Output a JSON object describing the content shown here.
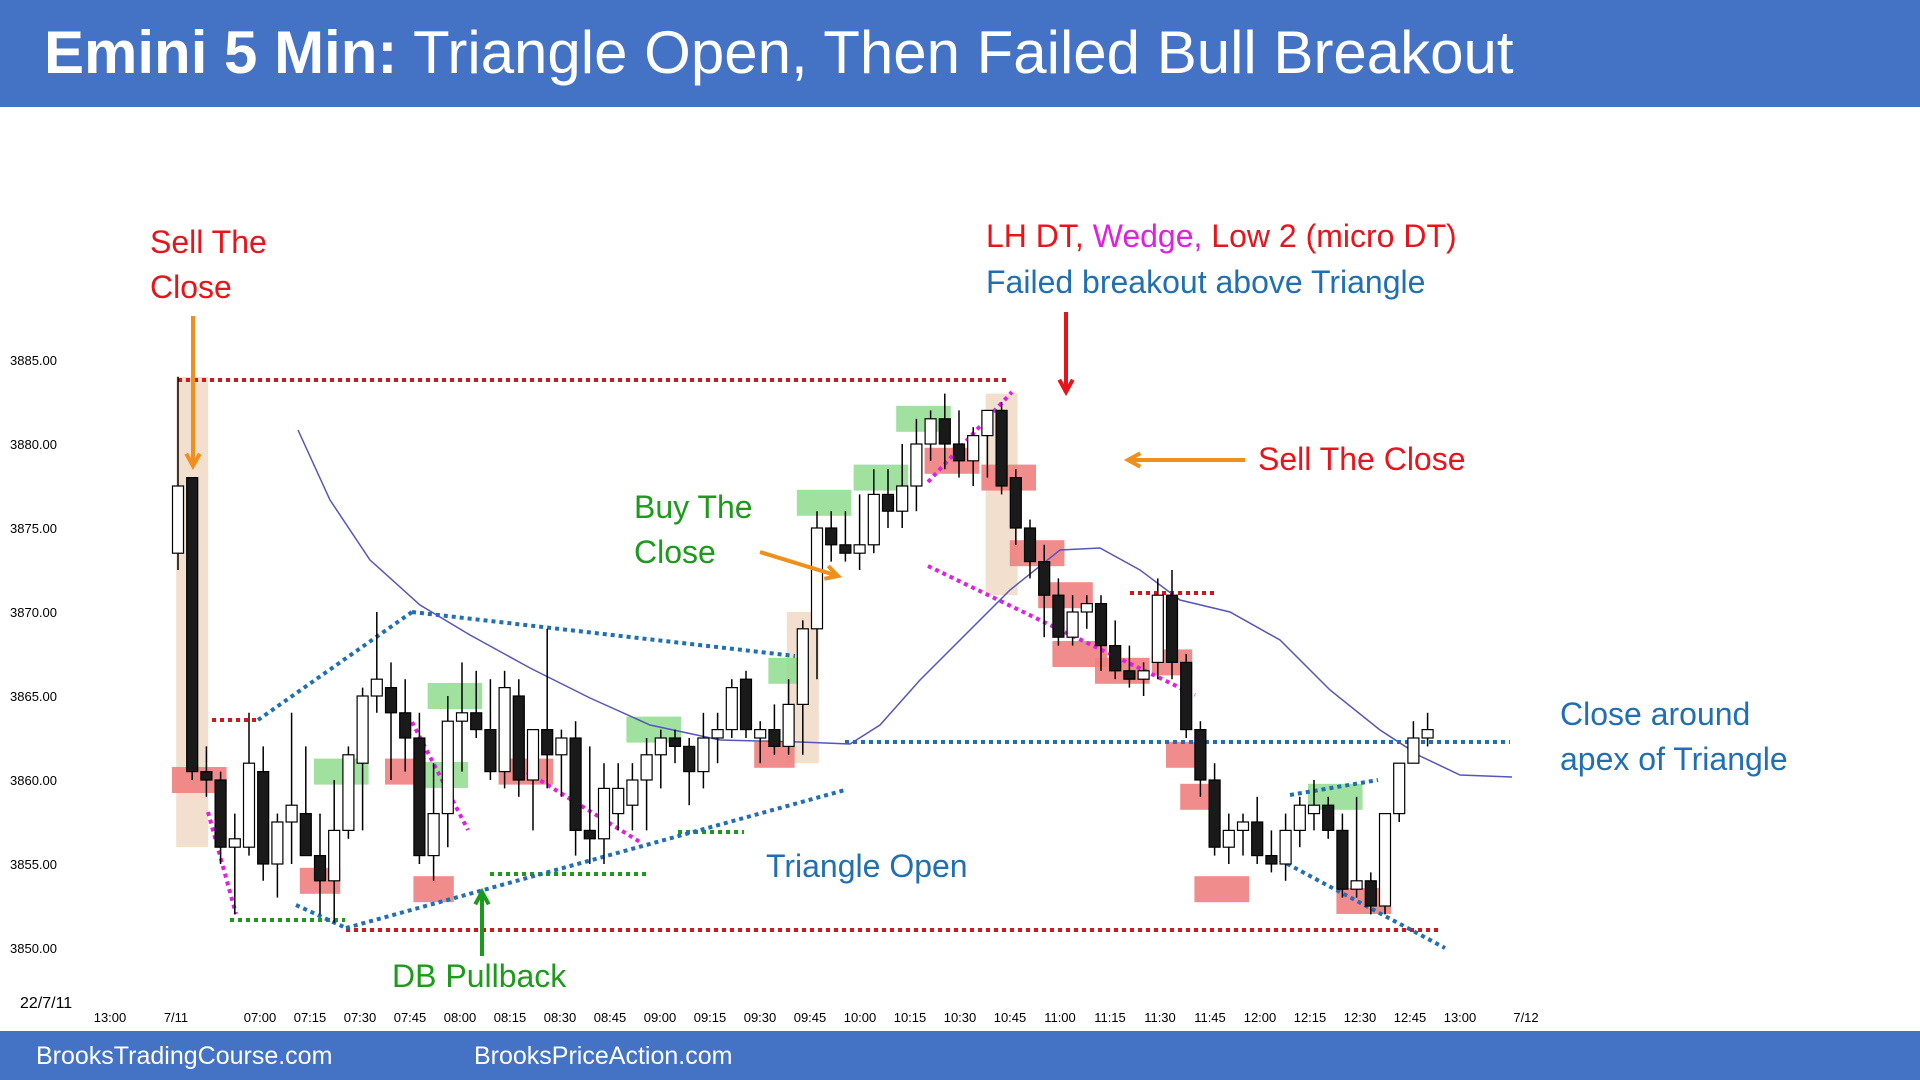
{
  "header": {
    "title_bold": "Emini 5 Min:",
    "title_rest": "Triangle Open, Then Failed Bull Breakout"
  },
  "footer": {
    "left_link": "BrooksTradingCourse.com",
    "right_link": "BrooksPriceAction.com"
  },
  "colors": {
    "header_bg": "#4472c4",
    "bull_highlight": "#8fdc8f",
    "bear_highlight": "#f08080",
    "signal_bar": "#f0d9c4",
    "ema": "#5555bb"
  },
  "annotations": {
    "sell_close_1": "Sell The\nClose",
    "lh_dt": "LH DT,",
    "wedge": "Wedge,",
    "low2": "Low 2 (micro DT)",
    "failed_breakout": "Failed breakout above Triangle",
    "sell_close_2": "Sell The Close",
    "buy_close": "Buy The\nClose",
    "triangle_open": "Triangle Open",
    "db_pullback": "DB Pullback",
    "close_apex": "Close around\napex of Triangle"
  },
  "chart_data": {
    "type": "candlestick",
    "date_label": "22/7/11",
    "y_ticks": [
      "3850.00",
      "3855.00",
      "3860.00",
      "3865.00",
      "3870.00",
      "3875.00",
      "3880.00",
      "3885.00"
    ],
    "x_ticks": [
      "13:00",
      "7/11",
      "07:00",
      "07:15",
      "07:30",
      "07:45",
      "08:00",
      "08:15",
      "08:30",
      "08:45",
      "09:00",
      "09:15",
      "09:30",
      "09:45",
      "10:00",
      "10:15",
      "10:30",
      "10:45",
      "11:00",
      "11:15",
      "11:30",
      "11:45",
      "12:00",
      "12:15",
      "12:30",
      "12:45",
      "13:00",
      "7/12"
    ],
    "ylim": [
      3850,
      3885
    ],
    "candles": [
      {
        "o": 3873.5,
        "h": 3884,
        "l": 3872.5,
        "c": 3877.5
      },
      {
        "o": 3878,
        "h": 3878,
        "l": 3860,
        "c": 3860.5
      },
      {
        "o": 3860.5,
        "h": 3862,
        "l": 3859,
        "c": 3860
      },
      {
        "o": 3860,
        "h": 3860.5,
        "l": 3855,
        "c": 3856
      },
      {
        "o": 3856,
        "h": 3858,
        "l": 3852,
        "c": 3856.5
      },
      {
        "o": 3856,
        "h": 3864,
        "l": 3855.5,
        "c": 3861
      },
      {
        "o": 3860.5,
        "h": 3862,
        "l": 3854,
        "c": 3855
      },
      {
        "o": 3855,
        "h": 3858,
        "l": 3853,
        "c": 3857.5
      },
      {
        "o": 3857.5,
        "h": 3864,
        "l": 3855,
        "c": 3858.5
      },
      {
        "o": 3858,
        "h": 3862,
        "l": 3855.5,
        "c": 3855.5
      },
      {
        "o": 3855.5,
        "h": 3858,
        "l": 3852,
        "c": 3854
      },
      {
        "o": 3854,
        "h": 3860,
        "l": 3851.5,
        "c": 3857
      },
      {
        "o": 3857,
        "h": 3862,
        "l": 3856.5,
        "c": 3861.5
      },
      {
        "o": 3861,
        "h": 3865.5,
        "l": 3857,
        "c": 3865
      },
      {
        "o": 3865,
        "h": 3870,
        "l": 3864,
        "c": 3866
      },
      {
        "o": 3865.5,
        "h": 3867,
        "l": 3860,
        "c": 3864
      },
      {
        "o": 3864,
        "h": 3866,
        "l": 3860.5,
        "c": 3862.5
      },
      {
        "o": 3862.5,
        "h": 3864,
        "l": 3855,
        "c": 3855.5
      },
      {
        "o": 3855.5,
        "h": 3861,
        "l": 3854,
        "c": 3858
      },
      {
        "o": 3858,
        "h": 3865,
        "l": 3856,
        "c": 3863.5
      },
      {
        "o": 3863.5,
        "h": 3867,
        "l": 3860.5,
        "c": 3864
      },
      {
        "o": 3864,
        "h": 3866.5,
        "l": 3862.5,
        "c": 3863
      },
      {
        "o": 3863,
        "h": 3866,
        "l": 3860,
        "c": 3860.5
      },
      {
        "o": 3860.5,
        "h": 3866.5,
        "l": 3859.5,
        "c": 3865.5
      },
      {
        "o": 3865,
        "h": 3866,
        "l": 3859,
        "c": 3860
      },
      {
        "o": 3860,
        "h": 3863,
        "l": 3857,
        "c": 3863
      },
      {
        "o": 3863,
        "h": 3869,
        "l": 3859.5,
        "c": 3861.5
      },
      {
        "o": 3861.5,
        "h": 3863,
        "l": 3859,
        "c": 3862.5
      },
      {
        "o": 3862.5,
        "h": 3863.5,
        "l": 3855.5,
        "c": 3857
      },
      {
        "o": 3857,
        "h": 3862,
        "l": 3855,
        "c": 3856.5
      },
      {
        "o": 3856.5,
        "h": 3861,
        "l": 3855,
        "c": 3859.5
      },
      {
        "o": 3858,
        "h": 3861,
        "l": 3857,
        "c": 3859.5
      },
      {
        "o": 3858.5,
        "h": 3861,
        "l": 3857,
        "c": 3860
      },
      {
        "o": 3860,
        "h": 3862.5,
        "l": 3857,
        "c": 3861.5
      },
      {
        "o": 3861.5,
        "h": 3863,
        "l": 3859.5,
        "c": 3862.5
      },
      {
        "o": 3862.5,
        "h": 3863,
        "l": 3861,
        "c": 3862
      },
      {
        "o": 3862,
        "h": 3862.5,
        "l": 3858.5,
        "c": 3860.5
      },
      {
        "o": 3860.5,
        "h": 3864,
        "l": 3859.5,
        "c": 3862.5
      },
      {
        "o": 3862.5,
        "h": 3864,
        "l": 3861,
        "c": 3863
      },
      {
        "o": 3863,
        "h": 3866,
        "l": 3862.5,
        "c": 3865.5
      },
      {
        "o": 3866,
        "h": 3866.5,
        "l": 3862.5,
        "c": 3863
      },
      {
        "o": 3862.5,
        "h": 3863.5,
        "l": 3861,
        "c": 3863
      },
      {
        "o": 3863,
        "h": 3864.5,
        "l": 3861.5,
        "c": 3862
      },
      {
        "o": 3862,
        "h": 3866,
        "l": 3861.5,
        "c": 3864.5
      },
      {
        "o": 3864.5,
        "h": 3869.5,
        "l": 3861.5,
        "c": 3869
      },
      {
        "o": 3869,
        "h": 3876,
        "l": 3866,
        "c": 3875
      },
      {
        "o": 3875,
        "h": 3876,
        "l": 3873,
        "c": 3874
      },
      {
        "o": 3874,
        "h": 3876,
        "l": 3873,
        "c": 3873.5
      },
      {
        "o": 3873.5,
        "h": 3877,
        "l": 3872.5,
        "c": 3874
      },
      {
        "o": 3874,
        "h": 3878.5,
        "l": 3873.5,
        "c": 3877
      },
      {
        "o": 3877,
        "h": 3878.5,
        "l": 3875,
        "c": 3876
      },
      {
        "o": 3876,
        "h": 3880,
        "l": 3875,
        "c": 3877.5
      },
      {
        "o": 3877.5,
        "h": 3881.5,
        "l": 3876,
        "c": 3880
      },
      {
        "o": 3880,
        "h": 3882,
        "l": 3879,
        "c": 3881.5
      },
      {
        "o": 3881.5,
        "h": 3883,
        "l": 3878.5,
        "c": 3880
      },
      {
        "o": 3880,
        "h": 3882,
        "l": 3878,
        "c": 3879
      },
      {
        "o": 3879,
        "h": 3881,
        "l": 3877.5,
        "c": 3880.5
      },
      {
        "o": 3880.5,
        "h": 3882,
        "l": 3878,
        "c": 3882
      },
      {
        "o": 3882,
        "h": 3882.5,
        "l": 3877,
        "c": 3877.5
      },
      {
        "o": 3878,
        "h": 3878.5,
        "l": 3874,
        "c": 3875
      },
      {
        "o": 3875,
        "h": 3875.5,
        "l": 3872,
        "c": 3873
      },
      {
        "o": 3873,
        "h": 3874,
        "l": 3868.5,
        "c": 3871
      },
      {
        "o": 3871,
        "h": 3872,
        "l": 3868,
        "c": 3868.5
      },
      {
        "o": 3868.5,
        "h": 3871,
        "l": 3868,
        "c": 3870
      },
      {
        "o": 3870,
        "h": 3871,
        "l": 3869,
        "c": 3870.5
      },
      {
        "o": 3870.5,
        "h": 3871,
        "l": 3866.5,
        "c": 3868
      },
      {
        "o": 3868,
        "h": 3869.5,
        "l": 3866,
        "c": 3866.5
      },
      {
        "o": 3866.5,
        "h": 3868,
        "l": 3865.5,
        "c": 3866
      },
      {
        "o": 3866,
        "h": 3867,
        "l": 3865,
        "c": 3866.5
      },
      {
        "o": 3867,
        "h": 3872,
        "l": 3866,
        "c": 3871
      },
      {
        "o": 3871,
        "h": 3872.5,
        "l": 3866,
        "c": 3867
      },
      {
        "o": 3867,
        "h": 3867.5,
        "l": 3862.5,
        "c": 3863
      },
      {
        "o": 3863,
        "h": 3863.5,
        "l": 3859,
        "c": 3860
      },
      {
        "o": 3860,
        "h": 3861,
        "l": 3855.5,
        "c": 3856
      },
      {
        "o": 3856,
        "h": 3858,
        "l": 3855,
        "c": 3857
      },
      {
        "o": 3857,
        "h": 3858,
        "l": 3855.5,
        "c": 3857.5
      },
      {
        "o": 3857.5,
        "h": 3859,
        "l": 3855,
        "c": 3855.5
      },
      {
        "o": 3855.5,
        "h": 3857,
        "l": 3854.5,
        "c": 3855
      },
      {
        "o": 3855,
        "h": 3858,
        "l": 3854,
        "c": 3857
      },
      {
        "o": 3857,
        "h": 3859,
        "l": 3856,
        "c": 3858.5
      },
      {
        "o": 3858,
        "h": 3860,
        "l": 3857,
        "c": 3858.5
      },
      {
        "o": 3858.5,
        "h": 3859,
        "l": 3856.5,
        "c": 3857
      },
      {
        "o": 3857,
        "h": 3858,
        "l": 3853,
        "c": 3853.5
      },
      {
        "o": 3853.5,
        "h": 3859,
        "l": 3853,
        "c": 3854
      },
      {
        "o": 3854,
        "h": 3854.5,
        "l": 3852,
        "c": 3852.5
      },
      {
        "o": 3852.5,
        "h": 3858,
        "l": 3852,
        "c": 3858
      },
      {
        "o": 3858,
        "h": 3861,
        "l": 3857.5,
        "c": 3861
      },
      {
        "o": 3861,
        "h": 3863.5,
        "l": 3861,
        "c": 3862.5
      },
      {
        "o": 3862.5,
        "h": 3864,
        "l": 3862,
        "c": 3863
      }
    ],
    "ema_shown": true
  }
}
